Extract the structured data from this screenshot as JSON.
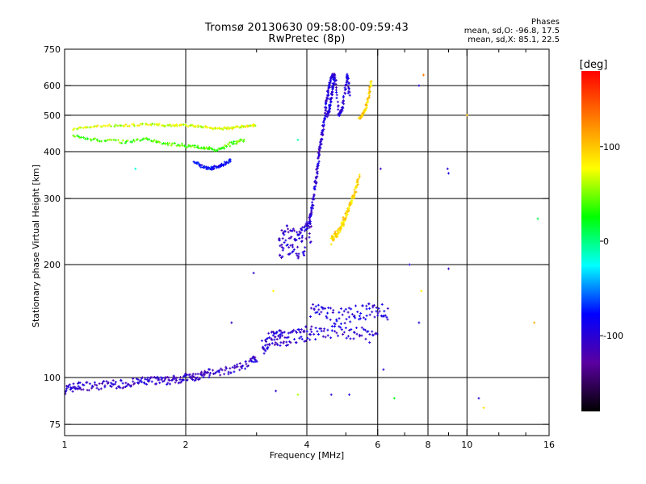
{
  "chart_data": {
    "type": "scatter",
    "title": "Tromsø 20130630 09:58:00-09:59:43",
    "subtitle": "RwPretec (8p)",
    "xlabel": "Frequency [MHz]",
    "ylabel": "Stationary phase Virtual Height [km]",
    "x_scale": "log",
    "y_scale": "log",
    "xlim": [
      1,
      16
    ],
    "ylim": [
      70,
      750
    ],
    "x_ticks": [
      1,
      2,
      4,
      6,
      8,
      10,
      16
    ],
    "x_tick_labels": [
      "1",
      "2",
      "4",
      "6",
      "8",
      "10",
      "16"
    ],
    "x_minor_ticks": [
      3,
      5,
      7,
      9,
      12,
      14
    ],
    "y_ticks": [
      75,
      100,
      200,
      300,
      400,
      500,
      600,
      750
    ],
    "y_tick_labels": [
      "75",
      "100",
      "200",
      "300",
      "400",
      "500",
      "600",
      "750"
    ],
    "grid": true,
    "colorbar": {
      "label": "[deg]",
      "range": [
        -180,
        180
      ],
      "tick_values": [
        100,
        0,
        -100
      ],
      "tick_labels": [
        "100",
        "0",
        "-100"
      ],
      "colors": [
        "#000000",
        "#5a00a0",
        "#0000ff",
        "#00ffff",
        "#00ff00",
        "#ffff00",
        "#ff7f00",
        "#ff0000"
      ]
    },
    "phase_stats": {
      "heading": "Phases",
      "o_line": "mean, sd,O: -96.8, 17.5",
      "x_line": "mean, sd,X: 85.1, 22.5"
    },
    "traces": [
      {
        "x": [
          1.0,
          1.05,
          1.1,
          1.2,
          1.3,
          1.4,
          1.5,
          1.6,
          1.7,
          1.8,
          1.9,
          2.0,
          2.1,
          2.2,
          2.3,
          2.5,
          2.7,
          2.9,
          3.0
        ],
        "y": [
          93,
          94,
          95,
          95,
          96,
          96,
          97,
          98,
          98,
          98,
          99,
          100,
          100,
          101,
          103,
          104,
          106,
          110,
          113
        ],
        "phase": -105,
        "spread": 2.5
      },
      {
        "x": [
          3.1,
          3.2,
          3.3,
          3.4,
          3.5,
          3.7,
          3.9,
          4.1,
          4.5,
          5.0,
          5.5,
          6.0
        ],
        "y": [
          120,
          125,
          128,
          128,
          127,
          128,
          130,
          132,
          133,
          132,
          130,
          128
        ],
        "phase": -100,
        "spread": 6
      },
      {
        "x": [
          4.1,
          4.4,
          4.8,
          5.2,
          5.6,
          6.0,
          6.4
        ],
        "y": [
          152,
          148,
          145,
          148,
          150,
          152,
          148
        ],
        "phase": -95,
        "spread": 7
      },
      {
        "x": [
          3.4,
          3.5,
          3.6,
          3.7,
          3.8,
          3.9,
          4.0,
          4.1
        ],
        "y": [
          215,
          230,
          235,
          228,
          225,
          230,
          240,
          248
        ],
        "phase": -105,
        "spread": 22
      },
      {
        "x": [
          4.05,
          4.1,
          4.15,
          4.2,
          4.25,
          4.3,
          4.35,
          4.4,
          4.45,
          4.5,
          4.55,
          4.6,
          4.65
        ],
        "y": [
          255,
          275,
          300,
          330,
          360,
          400,
          430,
          470,
          520,
          560,
          600,
          630,
          640
        ],
        "phase": -100,
        "spread": 5
      },
      {
        "x": [
          4.5,
          4.55,
          4.6,
          4.65,
          4.7,
          4.8,
          4.9,
          5.0,
          5.05,
          5.1
        ],
        "y": [
          500,
          520,
          560,
          600,
          640,
          500,
          520,
          600,
          640,
          560
        ],
        "phase": -98,
        "spread": 6
      },
      {
        "x": [
          4.6,
          4.7,
          4.8,
          4.9,
          5.0,
          5.1,
          5.2,
          5.3,
          5.4
        ],
        "y": [
          230,
          240,
          245,
          255,
          270,
          285,
          300,
          320,
          345
        ],
        "phase": 92,
        "spread": 5
      },
      {
        "x": [
          5.4,
          5.5,
          5.6,
          5.7,
          5.8
        ],
        "y": [
          490,
          500,
          520,
          560,
          620
        ],
        "phase": 95,
        "spread": 3
      },
      {
        "x": [
          1.05,
          1.2,
          1.4,
          1.6,
          1.8,
          2.0,
          2.2,
          2.4,
          2.6,
          2.8,
          3.0
        ],
        "y": [
          460,
          468,
          470,
          472,
          470,
          470,
          466,
          460,
          462,
          468,
          470
        ],
        "phase": 70,
        "spread": 3
      },
      {
        "x": [
          1.05,
          1.2,
          1.4,
          1.6,
          1.8,
          2.0,
          2.2,
          2.4,
          2.6,
          2.8
        ],
        "y": [
          440,
          430,
          425,
          432,
          420,
          415,
          410,
          405,
          420,
          430
        ],
        "phase": 40,
        "spread": 4
      },
      {
        "x": [
          2.1,
          2.2,
          2.3,
          2.4,
          2.5,
          2.6
        ],
        "y": [
          375,
          365,
          360,
          365,
          372,
          380
        ],
        "phase": -80,
        "spread": 3
      }
    ],
    "scattered_points": [
      {
        "x": 1.5,
        "y": 360,
        "phase": -20
      },
      {
        "x": 2.95,
        "y": 190,
        "phase": -100
      },
      {
        "x": 3.3,
        "y": 170,
        "phase": 80
      },
      {
        "x": 2.6,
        "y": 140,
        "phase": -110
      },
      {
        "x": 3.8,
        "y": 430,
        "phase": -10
      },
      {
        "x": 3.35,
        "y": 92,
        "phase": -100
      },
      {
        "x": 3.8,
        "y": 90,
        "phase": 60
      },
      {
        "x": 4.6,
        "y": 90,
        "phase": -100
      },
      {
        "x": 5.1,
        "y": 90,
        "phase": -90
      },
      {
        "x": 6.1,
        "y": 360,
        "phase": -110
      },
      {
        "x": 6.2,
        "y": 105,
        "phase": -100
      },
      {
        "x": 6.6,
        "y": 88,
        "phase": 20
      },
      {
        "x": 7.2,
        "y": 200,
        "phase": -100
      },
      {
        "x": 7.6,
        "y": 140,
        "phase": -90
      },
      {
        "x": 7.7,
        "y": 170,
        "phase": 80
      },
      {
        "x": 7.6,
        "y": 600,
        "phase": -100
      },
      {
        "x": 7.8,
        "y": 640,
        "phase": 130
      },
      {
        "x": 8.95,
        "y": 360,
        "phase": -100
      },
      {
        "x": 9.0,
        "y": 350,
        "phase": -90
      },
      {
        "x": 9.0,
        "y": 195,
        "phase": -110
      },
      {
        "x": 10.0,
        "y": 500,
        "phase": 100
      },
      {
        "x": 10.7,
        "y": 88,
        "phase": -100
      },
      {
        "x": 11.0,
        "y": 83,
        "phase": 90
      },
      {
        "x": 14.7,
        "y": 140,
        "phase": 110
      },
      {
        "x": 15.0,
        "y": 265,
        "phase": 10
      }
    ]
  }
}
